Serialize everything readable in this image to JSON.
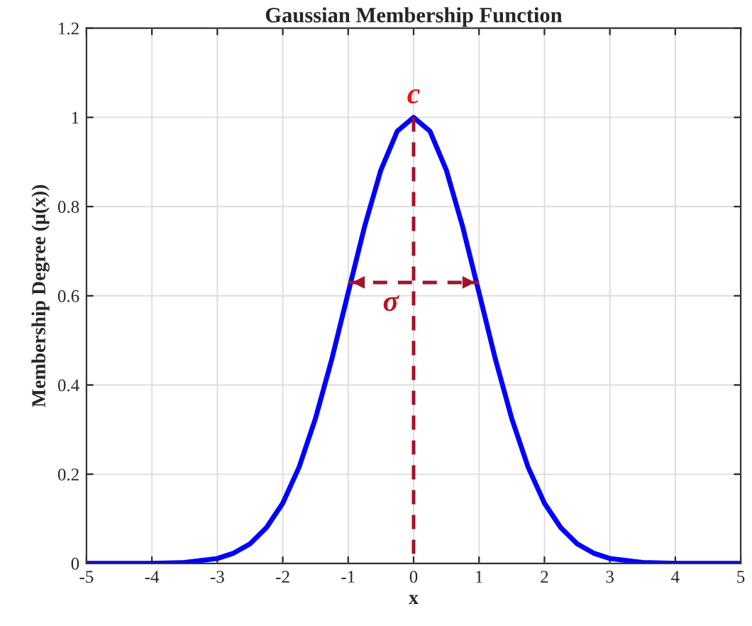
{
  "chart_data": {
    "type": "line",
    "title": "Gaussian Membership Function",
    "xlabel": "x",
    "ylabel": "Membership Degree (μ(x))",
    "series": [
      {
        "x": [
          -5,
          -4.5,
          -4,
          -3.5,
          -3,
          -2.75,
          -2.5,
          -2.25,
          -2,
          -1.75,
          -1.5,
          -1.25,
          -1,
          -0.75,
          -0.5,
          -0.25,
          0,
          0.25,
          0.5,
          0.75,
          1,
          1.25,
          1.5,
          1.75,
          2,
          2.25,
          2.5,
          2.75,
          3,
          3.5,
          4,
          4.5,
          5
        ],
        "values": [
          0,
          0,
          0,
          0.002,
          0.011,
          0.023,
          0.044,
          0.08,
          0.135,
          0.216,
          0.325,
          0.458,
          0.607,
          0.755,
          0.882,
          0.969,
          1,
          0.969,
          0.882,
          0.755,
          0.607,
          0.458,
          0.325,
          0.216,
          0.135,
          0.08,
          0.044,
          0.023,
          0.011,
          0.002,
          0,
          0,
          0
        ],
        "color": "#0000ff",
        "line_style": "solid"
      },
      {
        "x": [
          0,
          0
        ],
        "values": [
          1,
          0
        ],
        "color": "#a0142b",
        "line_style": "dashed"
      },
      {
        "x": [
          -1,
          1
        ],
        "values": [
          0.63,
          0.63
        ],
        "color": "#a0142b",
        "line_style": "dashed"
      }
    ],
    "annotations": [
      {
        "text": "c",
        "x": 0,
        "y": 1
      },
      {
        "text": "σ",
        "x": -0.35,
        "y": 0.63
      }
    ],
    "xlim": [
      -5,
      5
    ],
    "ylim": [
      0,
      1.2
    ],
    "xticks": [
      -5,
      -4,
      -3,
      -2,
      -1,
      0,
      1,
      2,
      3,
      4,
      5
    ],
    "yticks": [
      0,
      0.2,
      0.4,
      0.6,
      0.8,
      1,
      1.2
    ],
    "grid": true,
    "legend": false
  }
}
